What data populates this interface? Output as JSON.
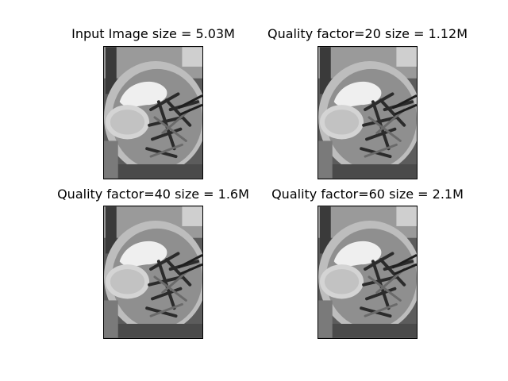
{
  "figure": {
    "panels": [
      {
        "title": "Input Image size = 5.03M",
        "image": "grayscale-food-photo-original"
      },
      {
        "title": "Quality factor=20 size = 1.12M",
        "image": "grayscale-food-photo-q20"
      },
      {
        "title": "Quality factor=40 size = 1.6M",
        "image": "grayscale-food-photo-q40"
      },
      {
        "title": "Quality factor=60 size = 2.1M",
        "image": "grayscale-food-photo-q60"
      }
    ]
  },
  "colors": {
    "background": "#ffffff",
    "frame": "#000000"
  }
}
